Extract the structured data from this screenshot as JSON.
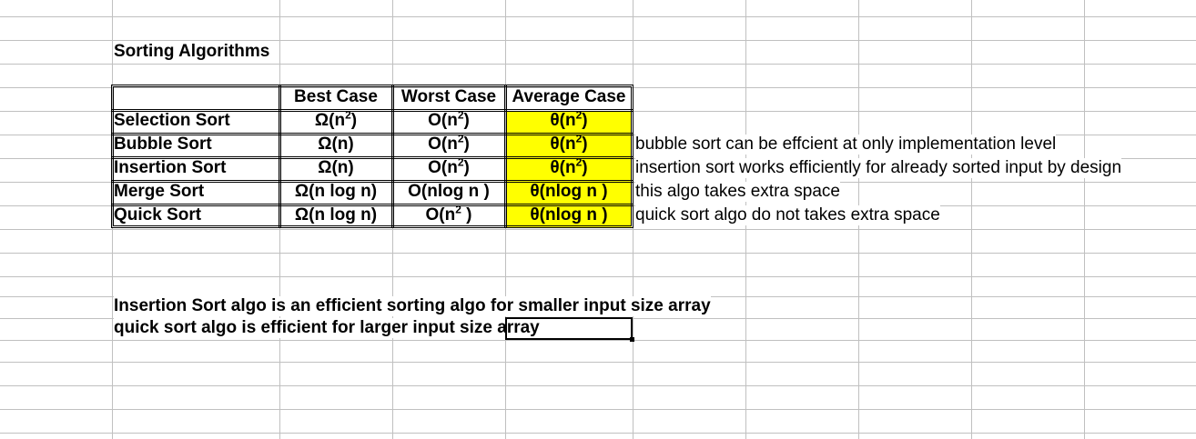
{
  "sheet": {
    "title": "Sorting Algorithms",
    "columns": [
      "",
      "Best Case",
      "Worst Case",
      "Average Case"
    ],
    "rows": [
      {
        "name": "Selection Sort",
        "best": "Ω(n",
        "best_sup": "2",
        "best_tail": ")",
        "worst": "O(n",
        "worst_sup": "2",
        "worst_tail": ")",
        "avg": "θ(n",
        "avg_sup": "2",
        "avg_tail": ")",
        "note": ""
      },
      {
        "name": "Bubble Sort",
        "best": "Ω(n)",
        "best_sup": "",
        "best_tail": "",
        "worst": "O(n",
        "worst_sup": "2",
        "worst_tail": ")",
        "avg": "θ(n",
        "avg_sup": "2",
        "avg_tail": ")",
        "note": "bubble sort can be effcient at only implementation level"
      },
      {
        "name": "Insertion Sort",
        "best": "Ω(n)",
        "best_sup": "",
        "best_tail": "",
        "worst": "O(n",
        "worst_sup": "2",
        "worst_tail": ")",
        "avg": "θ(n",
        "avg_sup": "2",
        "avg_tail": ")",
        "note": "insertion sort works efficiently for already sorted input by design"
      },
      {
        "name": "Merge Sort",
        "best": "Ω(n log n)",
        "best_sup": "",
        "best_tail": "",
        "worst": "O(nlog n )",
        "worst_sup": "",
        "worst_tail": "",
        "avg": "θ(nlog n )",
        "avg_sup": "",
        "avg_tail": "",
        "note": "this algo takes extra space"
      },
      {
        "name": "Quick Sort",
        "best": "Ω(n log n)",
        "best_sup": "",
        "best_tail": "",
        "worst": "O(n",
        "worst_sup": "2",
        "worst_tail": " )",
        "avg": "θ(nlog n )",
        "avg_sup": "",
        "avg_tail": "",
        "note": "quick sort algo do not takes extra space"
      }
    ],
    "summary_1": "Insertion Sort algo is an efficient sorting algo for smaller input size array",
    "summary_2": "quick sort algo is efficient for larger input size array"
  },
  "colors": {
    "highlight": "#ffff00",
    "grid": "#c0c0c0"
  }
}
